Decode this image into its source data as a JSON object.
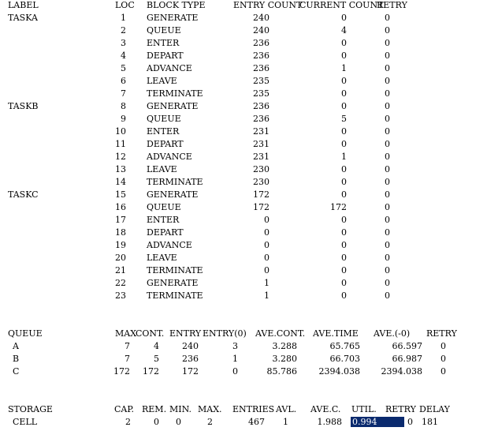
{
  "blocks_header": {
    "label": "LABEL",
    "loc": "LOC",
    "block_type": "BLOCK TYPE",
    "entry_count": "ENTRY COUNT",
    "current_count": "CURRENT COUNT",
    "retry": "RETRY"
  },
  "blocks": [
    {
      "label": "TASKA",
      "loc": "1",
      "type": "GENERATE",
      "entry": "240",
      "current": "0",
      "retry": "0"
    },
    {
      "label": "",
      "loc": "2",
      "type": "QUEUE",
      "entry": "240",
      "current": "4",
      "retry": "0"
    },
    {
      "label": "",
      "loc": "3",
      "type": "ENTER",
      "entry": "236",
      "current": "0",
      "retry": "0"
    },
    {
      "label": "",
      "loc": "4",
      "type": "DEPART",
      "entry": "236",
      "current": "0",
      "retry": "0"
    },
    {
      "label": "",
      "loc": "5",
      "type": "ADVANCE",
      "entry": "236",
      "current": "1",
      "retry": "0"
    },
    {
      "label": "",
      "loc": "6",
      "type": "LEAVE",
      "entry": "235",
      "current": "0",
      "retry": "0"
    },
    {
      "label": "",
      "loc": "7",
      "type": "TERMINATE",
      "entry": "235",
      "current": "0",
      "retry": "0"
    },
    {
      "label": "TASKB",
      "loc": "8",
      "type": "GENERATE",
      "entry": "236",
      "current": "0",
      "retry": "0"
    },
    {
      "label": "",
      "loc": "9",
      "type": "QUEUE",
      "entry": "236",
      "current": "5",
      "retry": "0"
    },
    {
      "label": "",
      "loc": "10",
      "type": "ENTER",
      "entry": "231",
      "current": "0",
      "retry": "0"
    },
    {
      "label": "",
      "loc": "11",
      "type": "DEPART",
      "entry": "231",
      "current": "0",
      "retry": "0"
    },
    {
      "label": "",
      "loc": "12",
      "type": "ADVANCE",
      "entry": "231",
      "current": "1",
      "retry": "0"
    },
    {
      "label": "",
      "loc": "13",
      "type": "LEAVE",
      "entry": "230",
      "current": "0",
      "retry": "0"
    },
    {
      "label": "",
      "loc": "14",
      "type": "TERMINATE",
      "entry": "230",
      "current": "0",
      "retry": "0"
    },
    {
      "label": "TASKC",
      "loc": "15",
      "type": "GENERATE",
      "entry": "172",
      "current": "0",
      "retry": "0"
    },
    {
      "label": "",
      "loc": "16",
      "type": "QUEUE",
      "entry": "172",
      "current": "172",
      "retry": "0"
    },
    {
      "label": "",
      "loc": "17",
      "type": "ENTER",
      "entry": "0",
      "current": "0",
      "retry": "0"
    },
    {
      "label": "",
      "loc": "18",
      "type": "DEPART",
      "entry": "0",
      "current": "0",
      "retry": "0"
    },
    {
      "label": "",
      "loc": "19",
      "type": "ADVANCE",
      "entry": "0",
      "current": "0",
      "retry": "0"
    },
    {
      "label": "",
      "loc": "20",
      "type": "LEAVE",
      "entry": "0",
      "current": "0",
      "retry": "0"
    },
    {
      "label": "",
      "loc": "21",
      "type": "TERMINATE",
      "entry": "0",
      "current": "0",
      "retry": "0"
    },
    {
      "label": "",
      "loc": "22",
      "type": "GENERATE",
      "entry": "1",
      "current": "0",
      "retry": "0"
    },
    {
      "label": "",
      "loc": "23",
      "type": "TERMINATE",
      "entry": "1",
      "current": "0",
      "retry": "0"
    }
  ],
  "queue_header": {
    "name": "QUEUE",
    "max": "MAX",
    "cont": "CONT.",
    "entry": "ENTRY",
    "entry0": "ENTRY(0)",
    "ave_cont": "AVE.CONT.",
    "ave_time": "AVE.TIME",
    "ave_minus0": "AVE.(-0)",
    "retry": "RETRY"
  },
  "queues": [
    {
      "name": "A",
      "max": "7",
      "cont": "4",
      "entry": "240",
      "entry0": "3",
      "ave_cont": "3.288",
      "ave_time": "65.765",
      "ave_minus0": "66.597",
      "retry": "0"
    },
    {
      "name": "B",
      "max": "7",
      "cont": "5",
      "entry": "236",
      "entry0": "1",
      "ave_cont": "3.280",
      "ave_time": "66.703",
      "ave_minus0": "66.987",
      "retry": "0"
    },
    {
      "name": "C",
      "max": "172",
      "cont": "172",
      "entry": "172",
      "entry0": "0",
      "ave_cont": "85.786",
      "ave_time": "2394.038",
      "ave_minus0": "2394.038",
      "retry": "0"
    }
  ],
  "storage_header": {
    "name": "STORAGE",
    "cap": "CAP.",
    "rem": "REM.",
    "min": "MIN.",
    "max": "MAX.",
    "entries": "ENTRIES",
    "avl": "AVL.",
    "ave_c": "AVE.C.",
    "util": "UTIL.",
    "retry": "RETRY",
    "delay": "DELAY"
  },
  "storages": [
    {
      "name": "CELL",
      "cap": "2",
      "rem": "0",
      "min": "0",
      "max": "2",
      "entries": "467",
      "avl": "1",
      "ave_c": "1.988",
      "util": "0.994",
      "retry": "0",
      "delay": "181"
    }
  ],
  "colors": {
    "selection": "#0a2a6e",
    "background": "#ffffff",
    "text": "#000000"
  }
}
